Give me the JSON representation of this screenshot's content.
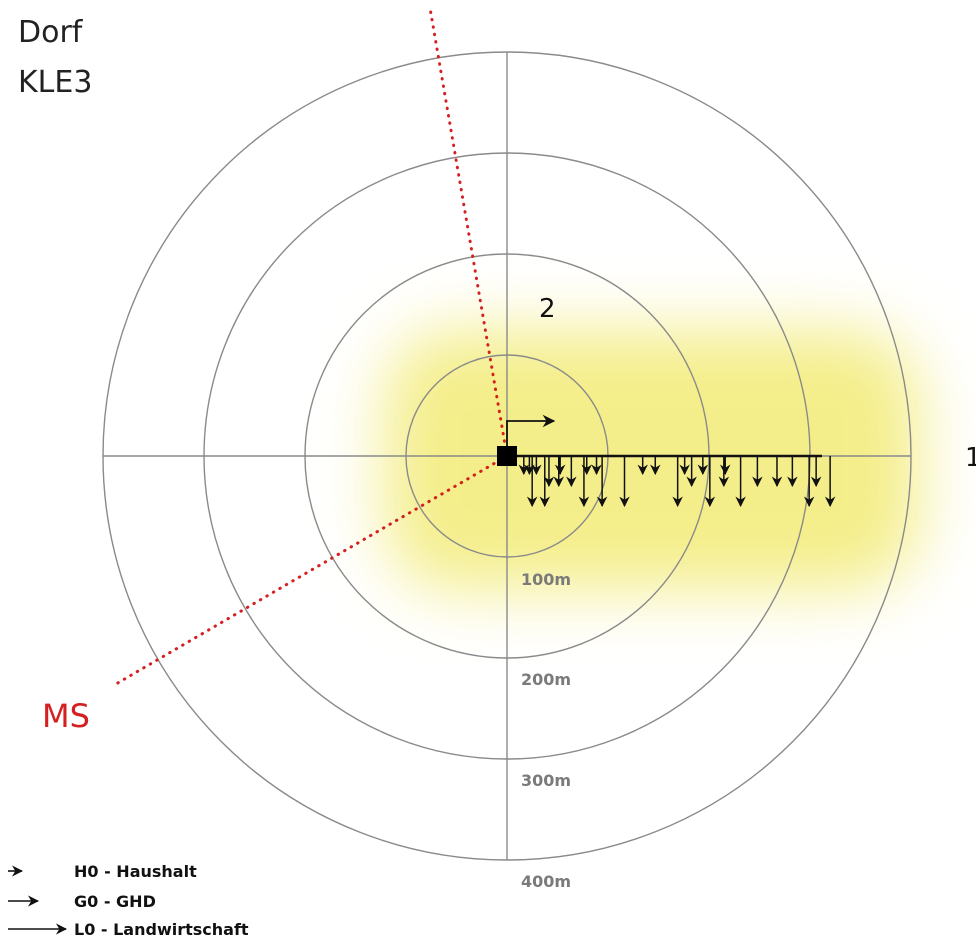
{
  "title": {
    "line1": "Dorf",
    "line2": "KLE3"
  },
  "colors": {
    "ring": "#8a8a8a",
    "feeder": "#111111",
    "ms_line": "#d42020",
    "glow": "#f4ee8a"
  },
  "rings": [
    "100m",
    "200m",
    "300m",
    "400m"
  ],
  "feeders": {
    "feeder_1": "1",
    "feeder_2": "2"
  },
  "ms_label": "MS",
  "legend": [
    {
      "code": "H0",
      "label": "H0 - Haushalt"
    },
    {
      "code": "G0",
      "label": "G0 - GHD"
    },
    {
      "code": "L0",
      "label": "L0 - Landwirtschaft"
    }
  ],
  "loads": {
    "L0": [
      9,
      13.5,
      27.5,
      34,
      42,
      61,
      72.5,
      83.5,
      108,
      115.5
    ],
    "G0": [
      15,
      18.5,
      23,
      66,
      77.5,
      89.5,
      96.5,
      102,
      110.5
    ],
    "H0": [
      6,
      8,
      10.5,
      19,
      28.5,
      32,
      48.5,
      53,
      63.5,
      70,
      78
    ]
  }
}
